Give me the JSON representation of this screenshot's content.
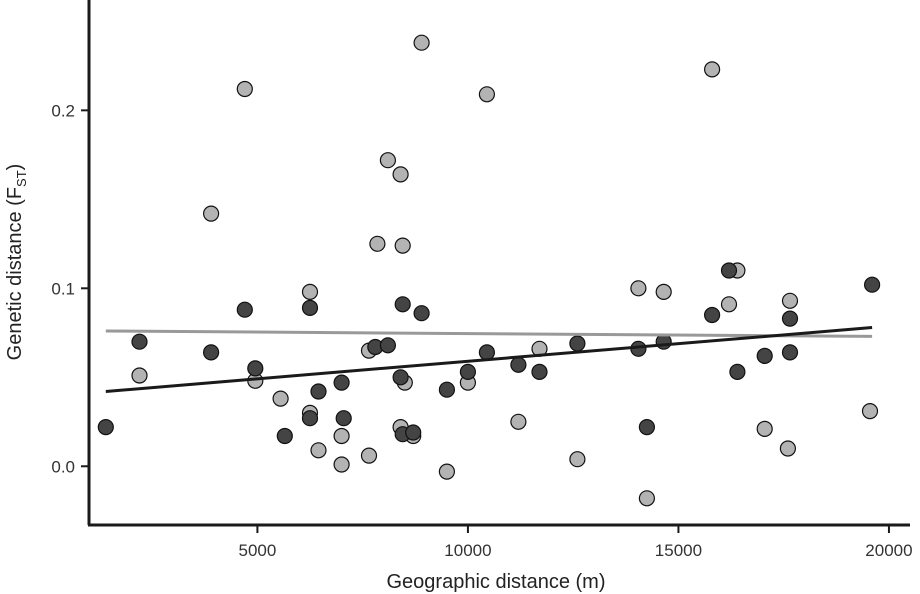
{
  "chart_data": {
    "type": "scatter",
    "xlabel": "Geographic distance (m)",
    "ylabel": {
      "main": "Genetic distance (F",
      "sub": "ST",
      "close": ")"
    },
    "xlim": [
      1000,
      20500
    ],
    "ylim": [
      -0.033,
      0.262
    ],
    "x_ticks": [
      5000,
      10000,
      15000,
      20000
    ],
    "x_tick_labels": [
      "5000",
      "10000",
      "15000",
      "20000"
    ],
    "y_ticks": [
      0.0,
      0.1,
      0.2
    ],
    "y_tick_labels": [
      "0.0",
      "0.1",
      "0.2"
    ],
    "grid": false,
    "series": [
      {
        "color": "#b3b3b3",
        "points": [
          [
            2200,
            0.051
          ],
          [
            3900,
            0.142
          ],
          [
            4700,
            0.212
          ],
          [
            4950,
            0.048
          ],
          [
            5550,
            0.038
          ],
          [
            6250,
            0.098
          ],
          [
            6250,
            0.03
          ],
          [
            6450,
            0.009
          ],
          [
            7000,
            0.017
          ],
          [
            7000,
            0.001
          ],
          [
            7650,
            0.006
          ],
          [
            7650,
            0.065
          ],
          [
            7850,
            0.125
          ],
          [
            8100,
            0.172
          ],
          [
            8400,
            0.164
          ],
          [
            8450,
            0.124
          ],
          [
            8400,
            0.022
          ],
          [
            8500,
            0.047
          ],
          [
            8700,
            0.017
          ],
          [
            8900,
            0.238
          ],
          [
            9500,
            -0.003
          ],
          [
            10000,
            0.047
          ],
          [
            10450,
            0.209
          ],
          [
            11200,
            0.025
          ],
          [
            11700,
            0.066
          ],
          [
            12600,
            0.004
          ],
          [
            14050,
            0.1
          ],
          [
            14250,
            -0.018
          ],
          [
            14650,
            0.098
          ],
          [
            15800,
            0.223
          ],
          [
            16200,
            0.091
          ],
          [
            16400,
            0.11
          ],
          [
            17050,
            0.021
          ],
          [
            17600,
            0.01
          ],
          [
            17650,
            0.093
          ],
          [
            19550,
            0.031
          ]
        ]
      },
      {
        "color": "#444444",
        "points": [
          [
            1400,
            0.022
          ],
          [
            2200,
            0.07
          ],
          [
            3900,
            0.064
          ],
          [
            4700,
            0.088
          ],
          [
            4950,
            0.055
          ],
          [
            5650,
            0.017
          ],
          [
            6250,
            0.089
          ],
          [
            6250,
            0.027
          ],
          [
            6450,
            0.042
          ],
          [
            7000,
            0.047
          ],
          [
            7050,
            0.027
          ],
          [
            7800,
            0.067
          ],
          [
            8100,
            0.068
          ],
          [
            8400,
            0.05
          ],
          [
            8450,
            0.091
          ],
          [
            8450,
            0.018
          ],
          [
            8700,
            0.019
          ],
          [
            8900,
            0.086
          ],
          [
            9500,
            0.043
          ],
          [
            10000,
            0.053
          ],
          [
            10450,
            0.064
          ],
          [
            11200,
            0.057
          ],
          [
            11700,
            0.053
          ],
          [
            12600,
            0.069
          ],
          [
            14050,
            0.066
          ],
          [
            14250,
            0.022
          ],
          [
            14650,
            0.07
          ],
          [
            15800,
            0.085
          ],
          [
            16200,
            0.11
          ],
          [
            16400,
            0.053
          ],
          [
            17050,
            0.062
          ],
          [
            17650,
            0.064
          ],
          [
            17650,
            0.083
          ],
          [
            19600,
            0.102
          ]
        ]
      }
    ],
    "trend_lines": [
      {
        "color": "#999999",
        "x": [
          1400,
          19600
        ],
        "y": [
          0.076,
          0.073
        ]
      },
      {
        "color": "#1a1a1a",
        "x": [
          1400,
          19600
        ],
        "y": [
          0.042,
          0.078
        ]
      }
    ]
  }
}
